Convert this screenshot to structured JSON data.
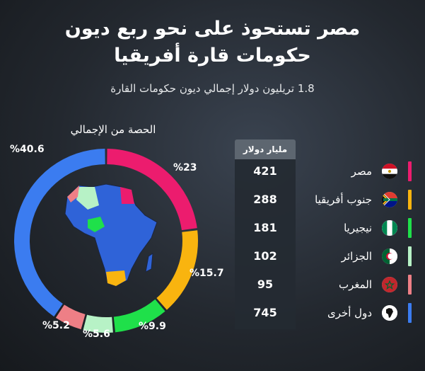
{
  "title_line1": "مصر تستحوذ على نحو ربع ديون",
  "title_line2": "حكومات قارة أفريقيا",
  "subtitle": "1.8 تريليون دولار إجمالي ديون حكومات القارة",
  "share_label": "الحصة من الإجمالي",
  "table_header": "مليار دولار",
  "colors": {
    "egypt": "#ec1c6e",
    "south_africa": "#f9b40f",
    "nigeria": "#1fe04a",
    "algeria": "#b7f2c6",
    "morocco": "#ee7f86",
    "others": "#3b7cf0",
    "map_fill": "#2f63d8"
  },
  "chart_data": {
    "type": "pie",
    "title": "الحصة من الإجمالي",
    "unit": "مليار دولار",
    "categories": [
      "مصر",
      "جنوب أفريقيا",
      "نيجيريا",
      "الجزائر",
      "المغرب",
      "دول أخرى"
    ],
    "values": [
      421,
      288,
      181,
      102,
      95,
      745
    ],
    "shares": [
      23,
      15.7,
      9.9,
      5.6,
      5.2,
      40.6
    ],
    "share_labels": [
      "%23",
      "%15.7",
      "%9.9",
      "%5.6",
      "%5.2",
      "%40.6"
    ],
    "icons": [
      "egypt-flag-icon",
      "south-africa-flag-icon",
      "nigeria-flag-icon",
      "algeria-flag-icon",
      "morocco-flag-icon",
      "africa-map-icon"
    ]
  }
}
